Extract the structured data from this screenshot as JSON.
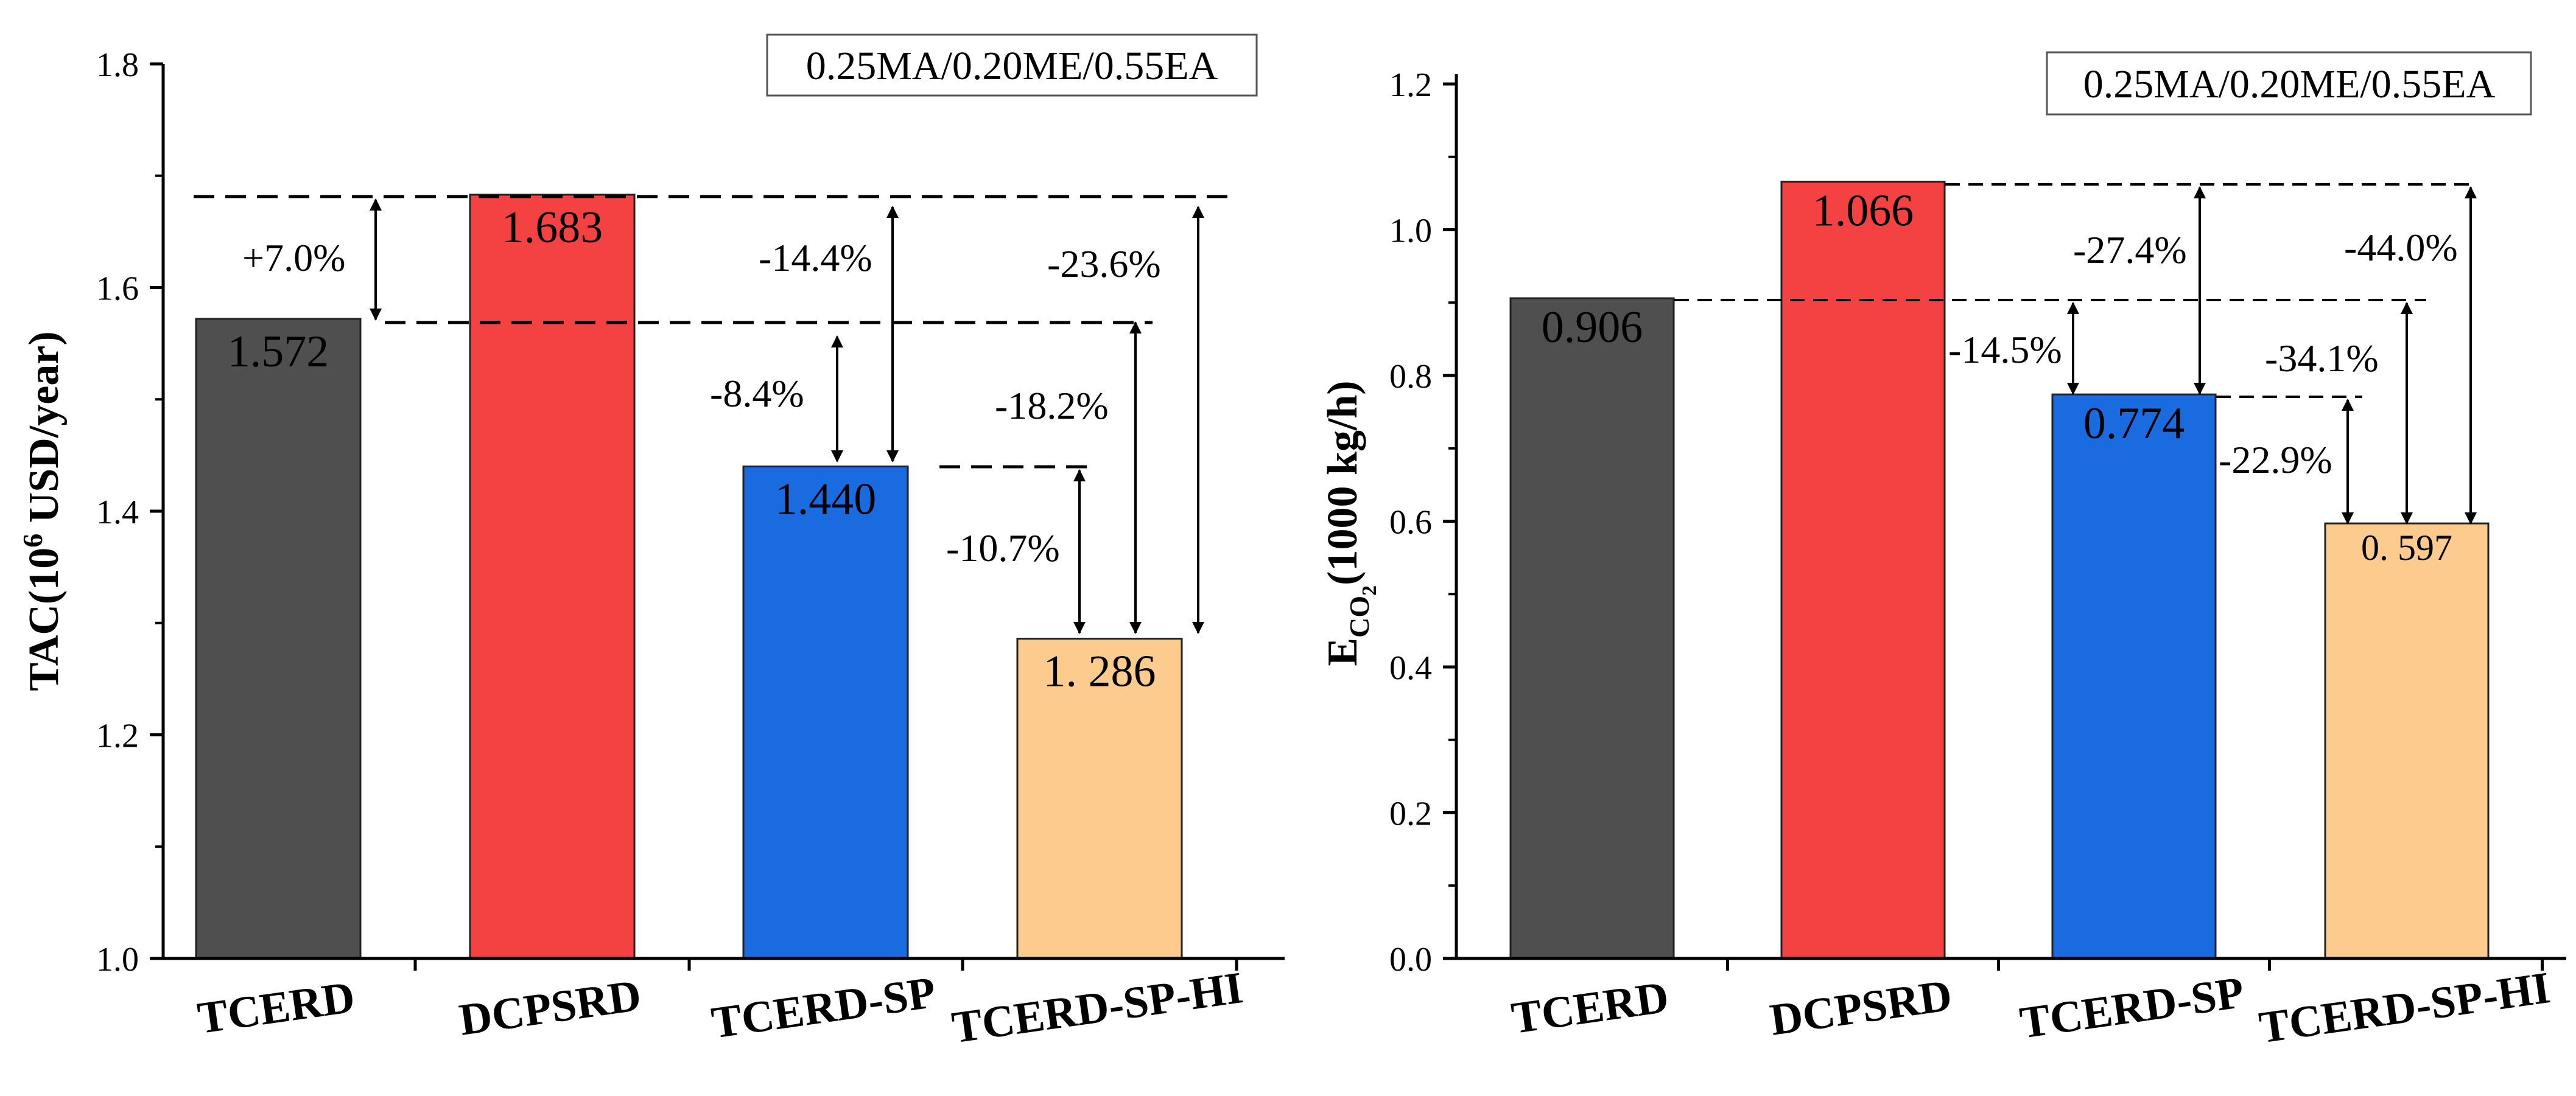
{
  "chart_data": [
    {
      "type": "bar",
      "categories": [
        "TCERD",
        "DCPSRD",
        "TCERD-SP",
        "TCERD-SP-HI"
      ],
      "values": [
        1.572,
        1.683,
        1.44,
        1.286
      ],
      "value_labels": [
        "1.572",
        "1.683",
        "1.440",
        "1. 286"
      ],
      "colors": [
        "#4f4f4f",
        "#f44242",
        "#1a6ae0",
        "#fdcb8e"
      ],
      "ylabel_main": "TAC(10",
      "ylabel_sup": "6",
      "ylabel_tail": " USD/year)",
      "xlabel": "",
      "ylim": [
        1.0,
        1.8
      ],
      "yticks": [
        1.0,
        1.2,
        1.4,
        1.6,
        1.8
      ],
      "ytick_labels": [
        "1.0",
        "1.2",
        "1.4",
        "1.6",
        "1.8"
      ],
      "legend": "0.25MA/0.20ME/0.55EA",
      "annotations": [
        "+7.0%",
        "-14.4%",
        "-23.6%",
        "-8.4%",
        "-18.2%",
        "-10.7%"
      ]
    },
    {
      "type": "bar",
      "categories": [
        "TCERD",
        "DCPSRD",
        "TCERD-SP",
        "TCERD-SP-HI"
      ],
      "values": [
        0.906,
        1.066,
        0.774,
        0.597
      ],
      "value_labels": [
        "0.906",
        "1.066",
        "0.774",
        "0. 597"
      ],
      "colors": [
        "#4f4f4f",
        "#f44242",
        "#1a6ae0",
        "#fdcb8e"
      ],
      "ylabel_main": "E",
      "ylabel_sub": "CO",
      "ylabel_sub2": "2",
      "ylabel_tail": "(1000 kg/h)",
      "xlabel": "",
      "ylim": [
        0.0,
        1.2
      ],
      "yticks": [
        0.0,
        0.2,
        0.4,
        0.6,
        0.8,
        1.0,
        1.2
      ],
      "ytick_labels": [
        "0.0",
        "0.2",
        "0.4",
        "0.6",
        "0.8",
        "1.0",
        "1.2"
      ],
      "legend": "0.25MA/0.20ME/0.55EA",
      "annotations": [
        "-27.4%",
        "-44.0%",
        "-14.5%",
        "-34.1%",
        "-22.9%"
      ]
    }
  ]
}
